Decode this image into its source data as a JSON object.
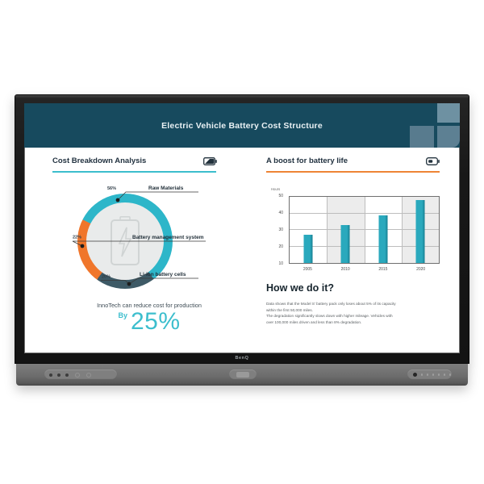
{
  "device": {
    "brand": "BenQ",
    "type": "interactive-flat-panel-display"
  },
  "slide": {
    "title": "Electric Vehicle Battery Cost Structure",
    "header_bg": "#174a5e",
    "left_section": {
      "heading": "Cost Breakdown Analysis",
      "accent_color": "#3cbecd",
      "icon": "battery-half-icon",
      "caption": "InnoTech can reduce cost for production",
      "by_label": "By",
      "highlight_value": "25%"
    },
    "right_section": {
      "heading": "A boost for battery life",
      "accent_color": "#ee8435",
      "icon": "battery-charge-icon",
      "how_heading": "How we do it?",
      "body_lines": [
        "Data shows that the Model S' battery pack only loses about 5% of its capacity",
        "within the first 50,000 miles.",
        "The degradation significantly slows down with higher mileage. Vehicles with",
        "over 100,000 miles driven and less than 8% degradation."
      ]
    }
  },
  "chart_data": [
    {
      "type": "pie",
      "variant": "donut",
      "title": "Cost Breakdown Analysis",
      "start_angle_deg": 297,
      "legend_position": "callout-labels",
      "center_icon": "battery-bolt-watermark",
      "segments": [
        {
          "label": "Raw Materials",
          "pct_label": "56%",
          "value": 56,
          "color": "#2db6c9"
        },
        {
          "label": "Li-ion battery cells",
          "pct_label": "20%",
          "value": 20,
          "color": "#3e5a66"
        },
        {
          "label": "Battery management system",
          "pct_label": "22%",
          "value": 22,
          "color": "#f0762b"
        }
      ]
    },
    {
      "type": "bar",
      "title": "A boost for battery life",
      "ylabel": "Hours",
      "xlabel": "",
      "categories": [
        "2005",
        "2010",
        "2015",
        "2020"
      ],
      "values": [
        27,
        33,
        39,
        48
      ],
      "ylim": [
        10,
        50
      ],
      "yticks": [
        50,
        40,
        30,
        20,
        10
      ],
      "grid": true,
      "bar_color": "#2aa9bd",
      "bar_edge_color": "#157f92",
      "band_shade_color": "#ececec"
    }
  ]
}
